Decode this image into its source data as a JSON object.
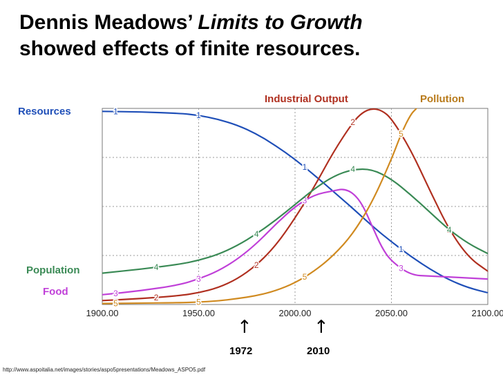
{
  "title": {
    "prefix": "Dennis Meadows’ ",
    "book": "Limits to Growth",
    "line2": "showed effects of finite resources."
  },
  "source": "http://www.aspoitalia.net/images/stories/aspo5presentations/Meadows_ASPO5.pdf",
  "chart_data": {
    "type": "line",
    "title": "",
    "xlabel": "",
    "ylabel": "",
    "xlim": [
      1900,
      2100
    ],
    "ylim": [
      0,
      1
    ],
    "x_ticks": [
      "1900.00",
      "1950.00",
      "2000.00",
      "2050.00",
      "2100.00"
    ],
    "grid": true,
    "series": [
      {
        "name": "Resources",
        "marker": "1",
        "color": "#1f4fb8",
        "x": [
          1900,
          1920,
          1940,
          1950,
          1960,
          1970,
          1980,
          1990,
          2000,
          2010,
          2020,
          2030,
          2040,
          2050,
          2060,
          2070,
          2080,
          2090,
          2100
        ],
        "y": [
          0.985,
          0.982,
          0.975,
          0.965,
          0.945,
          0.915,
          0.87,
          0.81,
          0.74,
          0.66,
          0.575,
          0.49,
          0.4,
          0.32,
          0.245,
          0.18,
          0.125,
          0.085,
          0.06
        ]
      },
      {
        "name": "Industrial Output",
        "marker": "2",
        "color": "#b03020",
        "x": [
          1900,
          1920,
          1940,
          1950,
          1960,
          1970,
          1980,
          1990,
          2000,
          2010,
          2020,
          2030,
          2035,
          2040,
          2045,
          2050,
          2060,
          2070,
          2080,
          2090,
          2100
        ],
        "y": [
          0.02,
          0.03,
          0.045,
          0.06,
          0.085,
          0.13,
          0.2,
          0.3,
          0.44,
          0.6,
          0.78,
          0.93,
          0.98,
          1.0,
          0.99,
          0.95,
          0.79,
          0.58,
          0.38,
          0.24,
          0.17
        ]
      },
      {
        "name": "Food",
        "marker": "3",
        "color": "#c040d8",
        "x": [
          1900,
          1920,
          1940,
          1950,
          1960,
          1970,
          1980,
          1990,
          2000,
          2010,
          2020,
          2025,
          2030,
          2035,
          2040,
          2045,
          2050,
          2060,
          2070,
          2080,
          2090,
          2100
        ],
        "y": [
          0.05,
          0.07,
          0.1,
          0.13,
          0.17,
          0.23,
          0.31,
          0.41,
          0.5,
          0.56,
          0.58,
          0.59,
          0.57,
          0.51,
          0.4,
          0.29,
          0.22,
          0.15,
          0.145,
          0.14,
          0.135,
          0.13
        ]
      },
      {
        "name": "Population",
        "marker": "4",
        "color": "#3a8a55",
        "x": [
          1900,
          1920,
          1940,
          1950,
          1960,
          1970,
          1980,
          1990,
          2000,
          2010,
          2020,
          2030,
          2040,
          2050,
          2060,
          2070,
          2080,
          2090,
          2100
        ],
        "y": [
          0.16,
          0.18,
          0.205,
          0.225,
          0.255,
          0.3,
          0.36,
          0.43,
          0.51,
          0.59,
          0.655,
          0.69,
          0.69,
          0.64,
          0.56,
          0.47,
          0.38,
          0.31,
          0.26
        ]
      },
      {
        "name": "Pollution",
        "marker": "5",
        "color": "#d08a20",
        "x": [
          1900,
          1920,
          1940,
          1950,
          1960,
          1970,
          1980,
          1990,
          2000,
          2010,
          2020,
          2030,
          2040,
          2050,
          2055,
          2060,
          2063
        ],
        "y": [
          0.005,
          0.007,
          0.009,
          0.012,
          0.018,
          0.03,
          0.045,
          0.07,
          0.11,
          0.17,
          0.25,
          0.36,
          0.52,
          0.74,
          0.87,
          0.97,
          1.0
        ]
      }
    ],
    "labels": {
      "resources": "Resources",
      "industrial_output": "Industrial Output",
      "pollution": "Pollution",
      "population": "Population",
      "food": "Food"
    },
    "annotations": [
      {
        "year": 1972,
        "label": "1972"
      },
      {
        "year": 2010,
        "label": "2010"
      }
    ]
  }
}
